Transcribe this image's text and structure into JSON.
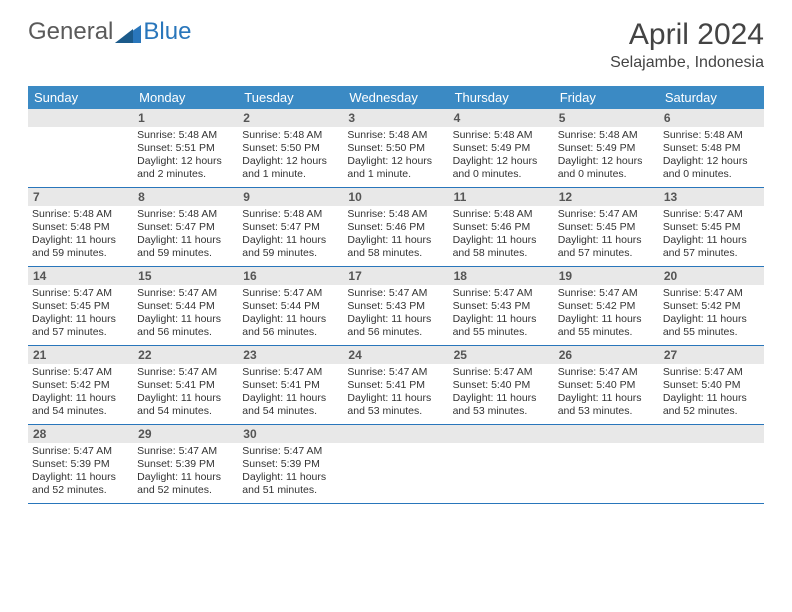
{
  "brand": {
    "text_general": "General",
    "text_blue": "Blue"
  },
  "header": {
    "title": "April 2024",
    "location": "Selajambe, Indonesia"
  },
  "colors": {
    "header_bg": "#3b8ac4",
    "header_text": "#ffffff",
    "daynum_bg": "#e8e8e8",
    "daynum_text": "#555555",
    "border": "#2976bb",
    "body_text": "#333333",
    "title_text": "#444444",
    "logo_gray": "#5a5a5a",
    "logo_blue": "#2976bb"
  },
  "day_names": [
    "Sunday",
    "Monday",
    "Tuesday",
    "Wednesday",
    "Thursday",
    "Friday",
    "Saturday"
  ],
  "weeks": [
    [
      {
        "day": "",
        "sunrise": "",
        "sunset": "",
        "daylight": ""
      },
      {
        "day": "1",
        "sunrise": "5:48 AM",
        "sunset": "5:51 PM",
        "daylight": "12 hours and 2 minutes."
      },
      {
        "day": "2",
        "sunrise": "5:48 AM",
        "sunset": "5:50 PM",
        "daylight": "12 hours and 1 minute."
      },
      {
        "day": "3",
        "sunrise": "5:48 AM",
        "sunset": "5:50 PM",
        "daylight": "12 hours and 1 minute."
      },
      {
        "day": "4",
        "sunrise": "5:48 AM",
        "sunset": "5:49 PM",
        "daylight": "12 hours and 0 minutes."
      },
      {
        "day": "5",
        "sunrise": "5:48 AM",
        "sunset": "5:49 PM",
        "daylight": "12 hours and 0 minutes."
      },
      {
        "day": "6",
        "sunrise": "5:48 AM",
        "sunset": "5:48 PM",
        "daylight": "12 hours and 0 minutes."
      }
    ],
    [
      {
        "day": "7",
        "sunrise": "5:48 AM",
        "sunset": "5:48 PM",
        "daylight": "11 hours and 59 minutes."
      },
      {
        "day": "8",
        "sunrise": "5:48 AM",
        "sunset": "5:47 PM",
        "daylight": "11 hours and 59 minutes."
      },
      {
        "day": "9",
        "sunrise": "5:48 AM",
        "sunset": "5:47 PM",
        "daylight": "11 hours and 59 minutes."
      },
      {
        "day": "10",
        "sunrise": "5:48 AM",
        "sunset": "5:46 PM",
        "daylight": "11 hours and 58 minutes."
      },
      {
        "day": "11",
        "sunrise": "5:48 AM",
        "sunset": "5:46 PM",
        "daylight": "11 hours and 58 minutes."
      },
      {
        "day": "12",
        "sunrise": "5:47 AM",
        "sunset": "5:45 PM",
        "daylight": "11 hours and 57 minutes."
      },
      {
        "day": "13",
        "sunrise": "5:47 AM",
        "sunset": "5:45 PM",
        "daylight": "11 hours and 57 minutes."
      }
    ],
    [
      {
        "day": "14",
        "sunrise": "5:47 AM",
        "sunset": "5:45 PM",
        "daylight": "11 hours and 57 minutes."
      },
      {
        "day": "15",
        "sunrise": "5:47 AM",
        "sunset": "5:44 PM",
        "daylight": "11 hours and 56 minutes."
      },
      {
        "day": "16",
        "sunrise": "5:47 AM",
        "sunset": "5:44 PM",
        "daylight": "11 hours and 56 minutes."
      },
      {
        "day": "17",
        "sunrise": "5:47 AM",
        "sunset": "5:43 PM",
        "daylight": "11 hours and 56 minutes."
      },
      {
        "day": "18",
        "sunrise": "5:47 AM",
        "sunset": "5:43 PM",
        "daylight": "11 hours and 55 minutes."
      },
      {
        "day": "19",
        "sunrise": "5:47 AM",
        "sunset": "5:42 PM",
        "daylight": "11 hours and 55 minutes."
      },
      {
        "day": "20",
        "sunrise": "5:47 AM",
        "sunset": "5:42 PM",
        "daylight": "11 hours and 55 minutes."
      }
    ],
    [
      {
        "day": "21",
        "sunrise": "5:47 AM",
        "sunset": "5:42 PM",
        "daylight": "11 hours and 54 minutes."
      },
      {
        "day": "22",
        "sunrise": "5:47 AM",
        "sunset": "5:41 PM",
        "daylight": "11 hours and 54 minutes."
      },
      {
        "day": "23",
        "sunrise": "5:47 AM",
        "sunset": "5:41 PM",
        "daylight": "11 hours and 54 minutes."
      },
      {
        "day": "24",
        "sunrise": "5:47 AM",
        "sunset": "5:41 PM",
        "daylight": "11 hours and 53 minutes."
      },
      {
        "day": "25",
        "sunrise": "5:47 AM",
        "sunset": "5:40 PM",
        "daylight": "11 hours and 53 minutes."
      },
      {
        "day": "26",
        "sunrise": "5:47 AM",
        "sunset": "5:40 PM",
        "daylight": "11 hours and 53 minutes."
      },
      {
        "day": "27",
        "sunrise": "5:47 AM",
        "sunset": "5:40 PM",
        "daylight": "11 hours and 52 minutes."
      }
    ],
    [
      {
        "day": "28",
        "sunrise": "5:47 AM",
        "sunset": "5:39 PM",
        "daylight": "11 hours and 52 minutes."
      },
      {
        "day": "29",
        "sunrise": "5:47 AM",
        "sunset": "5:39 PM",
        "daylight": "11 hours and 52 minutes."
      },
      {
        "day": "30",
        "sunrise": "5:47 AM",
        "sunset": "5:39 PM",
        "daylight": "11 hours and 51 minutes."
      },
      {
        "day": "",
        "sunrise": "",
        "sunset": "",
        "daylight": ""
      },
      {
        "day": "",
        "sunrise": "",
        "sunset": "",
        "daylight": ""
      },
      {
        "day": "",
        "sunrise": "",
        "sunset": "",
        "daylight": ""
      },
      {
        "day": "",
        "sunrise": "",
        "sunset": "",
        "daylight": ""
      }
    ]
  ],
  "labels": {
    "sunrise": "Sunrise:",
    "sunset": "Sunset:",
    "daylight": "Daylight:"
  }
}
